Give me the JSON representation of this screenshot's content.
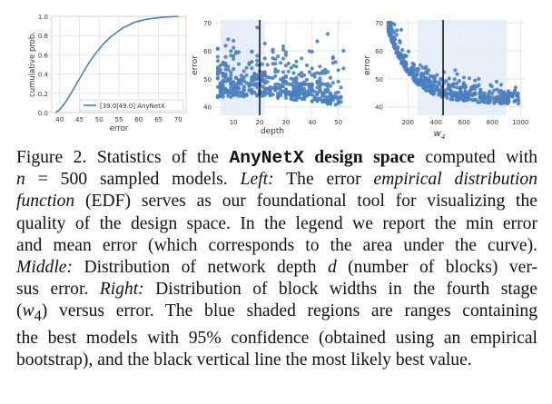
{
  "chart_data": [
    {
      "type": "line",
      "xlabel": "error",
      "ylabel": "cumulative prob.",
      "xlim": [
        38,
        72
      ],
      "ylim": [
        0,
        1.0
      ],
      "xticks": [
        "40",
        "45",
        "50",
        "55",
        "60",
        "65",
        "70"
      ],
      "yticks": [
        "0.0",
        "0.2",
        "0.4",
        "0.6",
        "0.8",
        "1.0"
      ],
      "legend": "[39.0|49.0] AnyNetX",
      "legend_position": "lower-right",
      "grid": true,
      "series": [
        {
          "name": "[39.0|49.0] AnyNetX",
          "x": [
            39,
            40,
            41,
            42,
            43,
            44,
            45,
            46,
            47,
            48,
            49,
            50,
            51,
            52,
            53,
            54,
            55,
            56,
            57,
            58,
            59,
            60,
            62,
            64,
            66,
            68,
            70
          ],
          "y": [
            0.0,
            0.03,
            0.08,
            0.14,
            0.21,
            0.28,
            0.35,
            0.42,
            0.49,
            0.55,
            0.61,
            0.66,
            0.71,
            0.75,
            0.79,
            0.82,
            0.85,
            0.88,
            0.9,
            0.92,
            0.94,
            0.95,
            0.97,
            0.98,
            0.99,
            0.995,
            1.0
          ]
        }
      ]
    },
    {
      "type": "scatter",
      "xlabel": "depth",
      "ylabel": "error",
      "xlim": [
        3,
        55
      ],
      "ylim": [
        37,
        71
      ],
      "xticks": [
        "10",
        "20",
        "30",
        "40",
        "50"
      ],
      "yticks": [
        "40",
        "50",
        "60",
        "70"
      ],
      "shaded_range": [
        5,
        22
      ],
      "best_value": 20,
      "grid": true,
      "series": [
        {
          "name": "",
          "x": [],
          "y": []
        }
      ]
    },
    {
      "type": "scatter",
      "xlabel": "w_4",
      "ylabel": "error",
      "xlim": [
        50,
        1030
      ],
      "ylim": [
        37,
        71
      ],
      "xticks": [
        "200",
        "400",
        "600",
        "800",
        "1000"
      ],
      "yticks": [
        "40",
        "50",
        "60",
        "70"
      ],
      "shaded_range": [
        270,
        900
      ],
      "best_value": 450,
      "grid": true,
      "series": [
        {
          "name": "",
          "x": [],
          "y": []
        }
      ]
    }
  ],
  "colors": {
    "series": "#4a7fc0",
    "shade": "#e3ebf6",
    "bestline": "#1a1a1a",
    "grid": "#e5e5e5"
  },
  "caption": {
    "l1a": "Figure 2. Statistics of the ",
    "l1b": "AnyNetX",
    "l1c": " design space",
    "l1d": " computed with",
    "l2a": "n",
    "l2b": " = 500 sampled models. ",
    "l2c": "Left:",
    "l2d": " The error ",
    "l2e": "empirical distribution",
    "l3a": "function",
    "l3b": " (EDF) serves as our foundational tool for visualizing the",
    "l4": "quality of the design space. In the legend we report the min error",
    "l5": "and mean error (which corresponds to the area under the curve).",
    "l6a": "Middle:",
    "l6b": " Distribution of network depth ",
    "l6c": "d",
    "l6d": " (number of blocks) ver-",
    "l7a": "sus error. ",
    "l7b": "Right:",
    "l7c": " Distribution of block widths in the fourth stage",
    "l8a": "(",
    "l8b": "w",
    "l8c": "4",
    "l8d": ") versus error. The blue shaded regions are ranges containing",
    "l9": "the best models with 95% confidence (obtained using an empirical",
    "l10": "bootstrap), and the black vertical line the most likely best value."
  }
}
